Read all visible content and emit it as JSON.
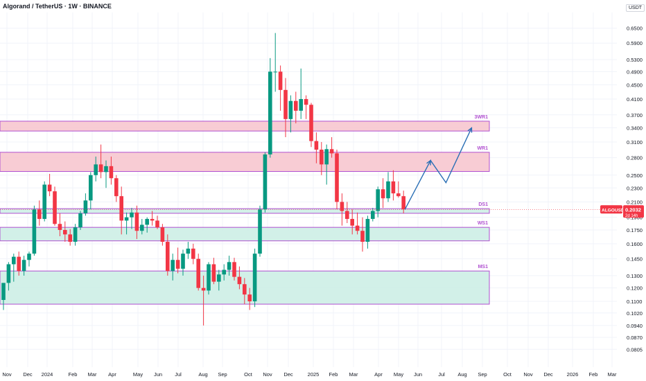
{
  "header": {
    "title": "Algorand / TetherUS · 1W · BINANCE",
    "currency": "USDT"
  },
  "price_tag": {
    "symbol": "ALGOUSDT",
    "price": "0.2032",
    "countdown": "2d 14h"
  },
  "colors": {
    "up": "#089981",
    "down": "#f23645",
    "resistance_fill": "#f7c6cf",
    "support_fill": "#cdeee6",
    "zone_border": "#b04fd0",
    "arrow": "#2a6fb5",
    "label": "#b04fd0"
  },
  "chart_data": {
    "type": "candlestick",
    "y_scale": "log",
    "ylim": [
      0.075,
      0.72
    ],
    "y_ticks": [
      "0.6500",
      "0.5900",
      "0.5300",
      "0.4900",
      "0.4500",
      "0.4100",
      "0.3700",
      "0.3400",
      "0.3100",
      "0.2800",
      "0.2500",
      "0.2300",
      "0.2100",
      "0.1900",
      "0.1750",
      "0.1600",
      "0.1450",
      "0.1300",
      "0.1200",
      "0.1100",
      "0.1020",
      "0.0940",
      "0.0870",
      "0.0805"
    ],
    "x_ticks": [
      "Nov",
      "Dec",
      "2024",
      "Feb",
      "Mar",
      "Apr",
      "May",
      "Jun",
      "Jul",
      "Aug",
      "Sep",
      "Oct",
      "Nov",
      "Dec",
      "2025",
      "Feb",
      "Mar",
      "Apr",
      "May",
      "Jun",
      "Jul",
      "Aug",
      "Sep",
      "Oct",
      "Nov",
      "Dec",
      "2026",
      "Feb",
      "Mar"
    ],
    "zones": [
      {
        "label": "3WR1",
        "low": 0.333,
        "high": 0.355,
        "kind": "resistance"
      },
      {
        "label": "WR1",
        "low": 0.256,
        "high": 0.29,
        "kind": "resistance"
      },
      {
        "label": "DS1",
        "low": 0.195,
        "high": 0.201,
        "kind": "support"
      },
      {
        "label": "WS1",
        "low": 0.163,
        "high": 0.178,
        "kind": "support"
      },
      {
        "label": "MS1",
        "low": 0.108,
        "high": 0.134,
        "kind": "support"
      }
    ],
    "candles": [
      [
        0.111,
        0.124,
        0.104,
        0.124
      ],
      [
        0.124,
        0.142,
        0.118,
        0.14
      ],
      [
        0.14,
        0.15,
        0.125,
        0.147
      ],
      [
        0.147,
        0.152,
        0.13,
        0.134
      ],
      [
        0.134,
        0.148,
        0.13,
        0.144
      ],
      [
        0.144,
        0.152,
        0.138,
        0.15
      ],
      [
        0.15,
        0.205,
        0.148,
        0.2
      ],
      [
        0.2,
        0.212,
        0.18,
        0.188
      ],
      [
        0.188,
        0.24,
        0.185,
        0.235
      ],
      [
        0.235,
        0.252,
        0.218,
        0.225
      ],
      [
        0.225,
        0.232,
        0.18,
        0.182
      ],
      [
        0.182,
        0.195,
        0.168,
        0.175
      ],
      [
        0.175,
        0.185,
        0.162,
        0.17
      ],
      [
        0.17,
        0.176,
        0.158,
        0.162
      ],
      [
        0.162,
        0.182,
        0.158,
        0.178
      ],
      [
        0.178,
        0.198,
        0.175,
        0.195
      ],
      [
        0.195,
        0.222,
        0.192,
        0.212
      ],
      [
        0.212,
        0.255,
        0.2,
        0.25
      ],
      [
        0.25,
        0.282,
        0.24,
        0.268
      ],
      [
        0.268,
        0.305,
        0.245,
        0.255
      ],
      [
        0.255,
        0.275,
        0.23,
        0.265
      ],
      [
        0.265,
        0.282,
        0.235,
        0.245
      ],
      [
        0.245,
        0.25,
        0.21,
        0.218
      ],
      [
        0.218,
        0.232,
        0.17,
        0.186
      ],
      [
        0.186,
        0.196,
        0.17,
        0.19
      ],
      [
        0.19,
        0.202,
        0.176,
        0.196
      ],
      [
        0.196,
        0.205,
        0.165,
        0.174
      ],
      [
        0.174,
        0.188,
        0.17,
        0.181
      ],
      [
        0.181,
        0.19,
        0.172,
        0.188
      ],
      [
        0.188,
        0.198,
        0.18,
        0.186
      ],
      [
        0.186,
        0.192,
        0.176,
        0.178
      ],
      [
        0.178,
        0.182,
        0.158,
        0.162
      ],
      [
        0.162,
        0.17,
        0.13,
        0.134
      ],
      [
        0.134,
        0.15,
        0.126,
        0.144
      ],
      [
        0.144,
        0.156,
        0.132,
        0.136
      ],
      [
        0.136,
        0.154,
        0.13,
        0.15
      ],
      [
        0.15,
        0.162,
        0.145,
        0.155
      ],
      [
        0.155,
        0.16,
        0.14,
        0.145
      ],
      [
        0.145,
        0.15,
        0.118,
        0.12
      ],
      [
        0.12,
        0.13,
        0.094,
        0.118
      ],
      [
        0.118,
        0.142,
        0.115,
        0.14
      ],
      [
        0.14,
        0.146,
        0.123,
        0.125
      ],
      [
        0.125,
        0.135,
        0.118,
        0.131
      ],
      [
        0.131,
        0.14,
        0.126,
        0.135
      ],
      [
        0.135,
        0.148,
        0.13,
        0.142
      ],
      [
        0.142,
        0.146,
        0.126,
        0.129
      ],
      [
        0.129,
        0.138,
        0.119,
        0.123
      ],
      [
        0.123,
        0.128,
        0.108,
        0.115
      ],
      [
        0.115,
        0.12,
        0.104,
        0.11
      ],
      [
        0.11,
        0.155,
        0.106,
        0.15
      ],
      [
        0.15,
        0.205,
        0.147,
        0.2
      ],
      [
        0.2,
        0.29,
        0.196,
        0.286
      ],
      [
        0.286,
        0.535,
        0.28,
        0.49
      ],
      [
        0.49,
        0.63,
        0.43,
        0.49
      ],
      [
        0.49,
        0.51,
        0.38,
        0.435
      ],
      [
        0.435,
        0.47,
        0.32,
        0.36
      ],
      [
        0.36,
        0.42,
        0.33,
        0.405
      ],
      [
        0.405,
        0.43,
        0.35,
        0.38
      ],
      [
        0.38,
        0.5,
        0.36,
        0.41
      ],
      [
        0.41,
        0.42,
        0.36,
        0.395
      ],
      [
        0.395,
        0.4,
        0.3,
        0.312
      ],
      [
        0.312,
        0.33,
        0.27,
        0.295
      ],
      [
        0.295,
        0.31,
        0.25,
        0.268
      ],
      [
        0.268,
        0.305,
        0.235,
        0.296
      ],
      [
        0.296,
        0.32,
        0.28,
        0.288
      ],
      [
        0.288,
        0.295,
        0.2,
        0.21
      ],
      [
        0.21,
        0.222,
        0.18,
        0.198
      ],
      [
        0.198,
        0.21,
        0.183,
        0.188
      ],
      [
        0.188,
        0.2,
        0.17,
        0.18
      ],
      [
        0.18,
        0.196,
        0.17,
        0.174
      ],
      [
        0.174,
        0.19,
        0.152,
        0.162
      ],
      [
        0.162,
        0.192,
        0.155,
        0.188
      ],
      [
        0.188,
        0.202,
        0.185,
        0.198
      ],
      [
        0.198,
        0.232,
        0.19,
        0.228
      ],
      [
        0.228,
        0.245,
        0.202,
        0.215
      ],
      [
        0.215,
        0.255,
        0.21,
        0.24
      ],
      [
        0.24,
        0.258,
        0.212,
        0.222
      ],
      [
        0.222,
        0.24,
        0.216,
        0.218
      ],
      [
        0.218,
        0.226,
        0.195,
        0.2
      ]
    ],
    "projection": [
      [
        0.2,
        0.2
      ],
      [
        5,
        0.275
      ],
      [
        8,
        0.238
      ],
      [
        13,
        0.34
      ]
    ]
  }
}
